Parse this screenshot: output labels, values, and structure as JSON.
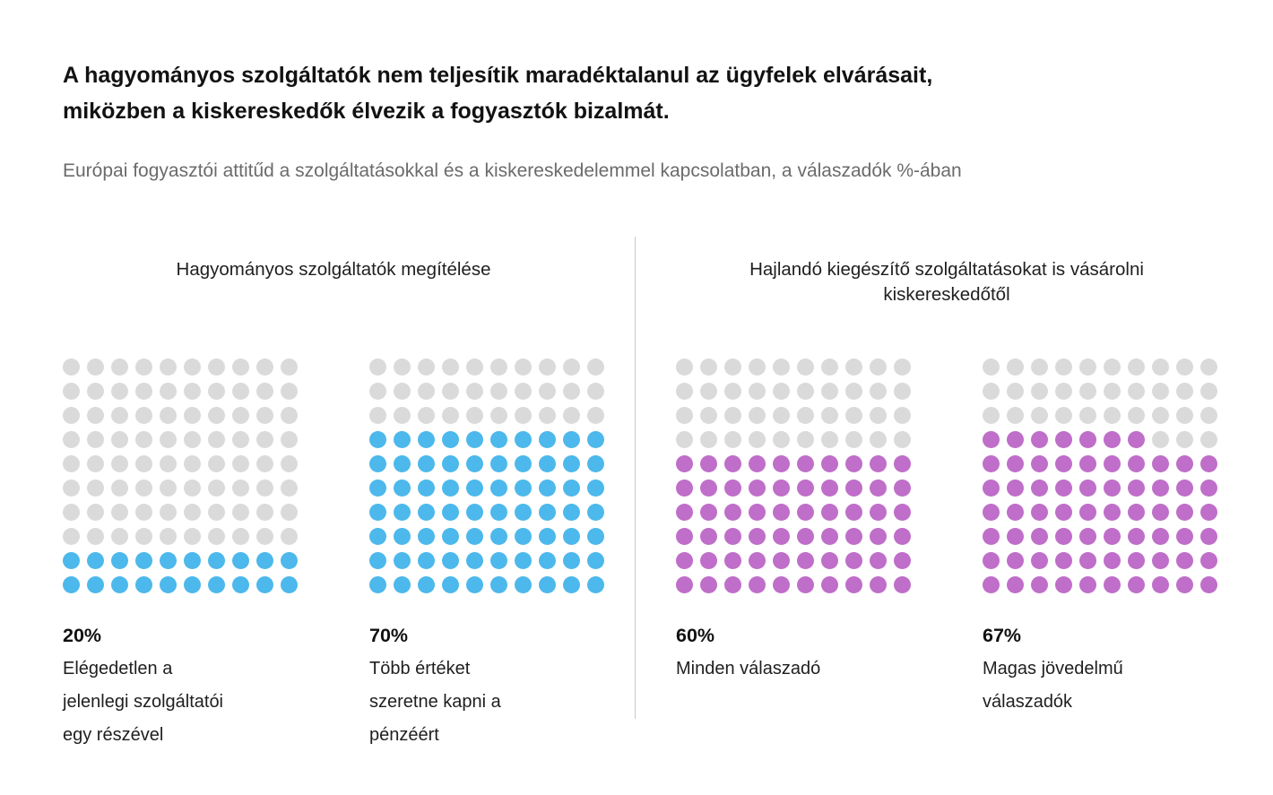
{
  "colors": {
    "filled_blue": "#4DB8EB",
    "filled_purple": "#BF6EC9",
    "empty_dot": "#DADADA",
    "divider": "#C9C9C9",
    "title_text": "#121212",
    "subtitle_text": "#6B6B6B"
  },
  "chart_data": {
    "type": "waffle",
    "title": "A hagyományos szolgáltatók nem teljesítik maradéktalanul az ügyfelek elvárásait,\nmiközben a kiskereskedők élvezik a fogyasztók bizalmát.",
    "subtitle": "Európai fogyasztói attitűd a szolgáltatásokkal és a kiskereskedelemmel kapcsolatban, a válaszadók %-ában",
    "unit": "% of respondents (a válaszadók %-ában)",
    "grid": {
      "rows": 10,
      "cols": 10,
      "dots_total": 100,
      "fill_direction": "bottom-up, partial row fills left-to-right"
    },
    "legend_position": "none",
    "groups": [
      {
        "header": "Hagyományos szolgáltatók megítélése",
        "charts": [
          {
            "value": 20,
            "value_label": "20%",
            "label": "Elégedetlen a\njelenlegi szolgáltatói\negy részével",
            "color": "#4DB8EB"
          },
          {
            "value": 70,
            "value_label": "70%",
            "label": "Több értéket\nszeretne kapni a\npénzéért",
            "color": "#4DB8EB"
          }
        ]
      },
      {
        "header": "Hajlandó kiegészítő szolgáltatásokat is vásárolni\nkiskereskedőtől",
        "charts": [
          {
            "value": 60,
            "value_label": "60%",
            "label": "Minden válaszadó",
            "color": "#BF6EC9"
          },
          {
            "value": 67,
            "value_label": "67%",
            "label": "Magas jövedelmű\nválaszadók",
            "color": "#BF6EC9"
          }
        ]
      }
    ]
  }
}
